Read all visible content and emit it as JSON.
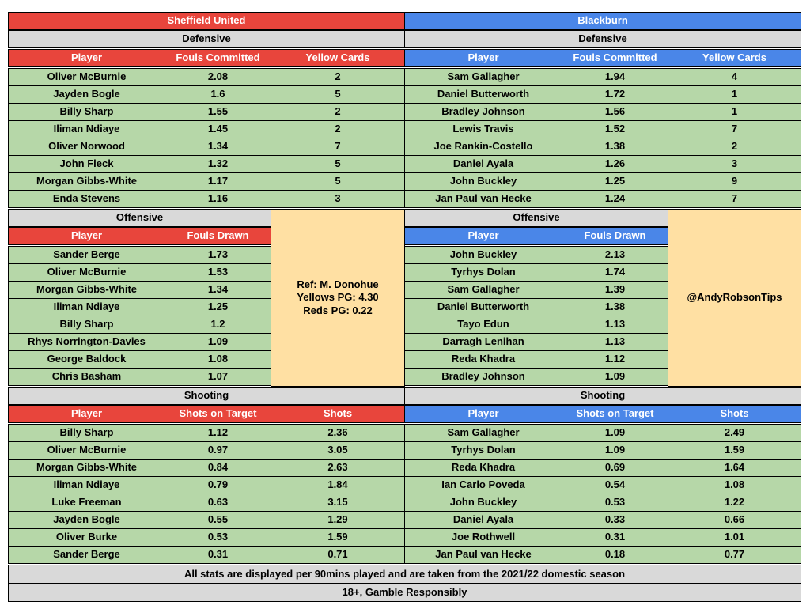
{
  "colors": {
    "sheffield_header": "#e8453c",
    "blackburn_header": "#4a86e8",
    "section_header": "#d9d9d9",
    "data_cell": "#b6d7a8",
    "info_cell": "#ffe0a3"
  },
  "teams": {
    "home": "Sheffield United",
    "away": "Blackburn"
  },
  "sections": {
    "defensive": "Defensive",
    "offensive": "Offensive",
    "shooting": "Shooting"
  },
  "columns": {
    "player": "Player",
    "fouls_committed": "Fouls Committed",
    "yellow_cards": "Yellow Cards",
    "fouls_drawn": "Fouls Drawn",
    "shots_on_target": "Shots on Target",
    "shots": "Shots"
  },
  "home": {
    "defensive": [
      [
        "Oliver McBurnie",
        "2.08",
        "2"
      ],
      [
        "Jayden Bogle",
        "1.6",
        "5"
      ],
      [
        "Billy Sharp",
        "1.55",
        "2"
      ],
      [
        "Iliman Ndiaye",
        "1.45",
        "2"
      ],
      [
        "Oliver Norwood",
        "1.34",
        "7"
      ],
      [
        "John Fleck",
        "1.32",
        "5"
      ],
      [
        "Morgan Gibbs-White",
        "1.17",
        "5"
      ],
      [
        "Enda Stevens",
        "1.16",
        "3"
      ]
    ],
    "offensive": [
      [
        "Sander Berge",
        "1.73"
      ],
      [
        "Oliver McBurnie",
        "1.53"
      ],
      [
        "Morgan Gibbs-White",
        "1.34"
      ],
      [
        "Iliman Ndiaye",
        "1.25"
      ],
      [
        "Billy Sharp",
        "1.2"
      ],
      [
        "Rhys Norrington-Davies",
        "1.09"
      ],
      [
        "George Baldock",
        "1.08"
      ],
      [
        "Chris Basham",
        "1.07"
      ]
    ],
    "shooting": [
      [
        "Billy Sharp",
        "1.12",
        "2.36"
      ],
      [
        "Oliver McBurnie",
        "0.97",
        "3.05"
      ],
      [
        "Morgan Gibbs-White",
        "0.84",
        "2.63"
      ],
      [
        "Iliman Ndiaye",
        "0.79",
        "1.84"
      ],
      [
        "Luke Freeman",
        "0.63",
        "3.15"
      ],
      [
        "Jayden Bogle",
        "0.55",
        "1.29"
      ],
      [
        "Oliver Burke",
        "0.53",
        "1.59"
      ],
      [
        "Sander Berge",
        "0.31",
        "0.71"
      ]
    ]
  },
  "away": {
    "defensive": [
      [
        "Sam Gallagher",
        "1.94",
        "4"
      ],
      [
        "Daniel Butterworth",
        "1.72",
        "1"
      ],
      [
        "Bradley Johnson",
        "1.56",
        "1"
      ],
      [
        "Lewis Travis",
        "1.52",
        "7"
      ],
      [
        "Joe Rankin-Costello",
        "1.38",
        "2"
      ],
      [
        "Daniel Ayala",
        "1.26",
        "3"
      ],
      [
        "John Buckley",
        "1.25",
        "9"
      ],
      [
        "Jan Paul van Hecke",
        "1.24",
        "7"
      ]
    ],
    "offensive": [
      [
        "John Buckley",
        "2.13"
      ],
      [
        "Tyrhys Dolan",
        "1.74"
      ],
      [
        "Sam Gallagher",
        "1.39"
      ],
      [
        "Daniel Butterworth",
        "1.38"
      ],
      [
        "Tayo Edun",
        "1.13"
      ],
      [
        "Darragh Lenihan",
        "1.13"
      ],
      [
        "Reda Khadra",
        "1.12"
      ],
      [
        "Bradley Johnson",
        "1.09"
      ]
    ],
    "shooting": [
      [
        "Sam Gallagher",
        "1.09",
        "2.49"
      ],
      [
        "Tyrhys Dolan",
        "1.09",
        "1.59"
      ],
      [
        "Reda Khadra",
        "0.69",
        "1.64"
      ],
      [
        "Ian Carlo Poveda",
        "0.54",
        "1.08"
      ],
      [
        "John Buckley",
        "0.53",
        "1.22"
      ],
      [
        "Daniel Ayala",
        "0.33",
        "0.66"
      ],
      [
        "Joe Rothwell",
        "0.31",
        "1.01"
      ],
      [
        "Jan Paul van Hecke",
        "0.18",
        "0.77"
      ]
    ]
  },
  "referee": {
    "name": "Ref: M. Donohue",
    "yellows": "Yellows PG: 4.30",
    "reds": "Reds PG: 0.22"
  },
  "credit": "@AndyRobsonTips",
  "footer": {
    "note": "All stats are displayed per 90mins played and are taken from the 2021/22 domestic season",
    "disclaimer": "18+, Gamble Responsibly"
  }
}
